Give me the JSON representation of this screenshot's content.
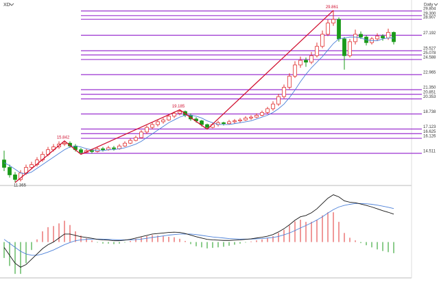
{
  "chart_data": {
    "type": "candlestick",
    "symbol": "XD",
    "period": "Daily",
    "up_color": "#e03030",
    "down_color": "#1a9a1a",
    "ma_color": "#4a7fd8",
    "fib_color": "#9b30d0",
    "trend_color": "#d01030",
    "ylim": [
      11.13,
      30.39
    ],
    "candles": [
      [
        13.8,
        14.8,
        12.6,
        13.0
      ],
      [
        13.0,
        13.3,
        11.9,
        12.2
      ],
      [
        12.2,
        12.5,
        11.365,
        11.7
      ],
      [
        11.7,
        12.7,
        11.5,
        12.4
      ],
      [
        12.4,
        13.3,
        12.2,
        13.0
      ],
      [
        13.0,
        13.6,
        12.8,
        13.3
      ],
      [
        13.3,
        14.1,
        13.1,
        13.8
      ],
      [
        13.8,
        14.7,
        13.6,
        14.4
      ],
      [
        14.4,
        15.2,
        14.2,
        14.9
      ],
      [
        14.9,
        15.5,
        14.7,
        15.2
      ],
      [
        15.2,
        15.8,
        15.0,
        15.5
      ],
      [
        15.5,
        15.842,
        15.3,
        15.6
      ],
      [
        15.6,
        15.8,
        15.1,
        15.3
      ],
      [
        15.3,
        15.5,
        14.7,
        14.9
      ],
      [
        14.9,
        15.1,
        14.4,
        14.6
      ],
      [
        14.6,
        15.0,
        14.5,
        14.8
      ],
      [
        14.8,
        15.0,
        14.5,
        14.7
      ],
      [
        14.7,
        15.2,
        14.6,
        15.0
      ],
      [
        15.0,
        15.2,
        14.7,
        14.9
      ],
      [
        14.9,
        15.3,
        14.8,
        15.1
      ],
      [
        15.1,
        15.3,
        14.8,
        15.0
      ],
      [
        15.0,
        15.5,
        14.9,
        15.3
      ],
      [
        15.3,
        15.8,
        15.2,
        15.6
      ],
      [
        15.6,
        16.1,
        15.5,
        15.9
      ],
      [
        15.9,
        16.4,
        15.8,
        16.2
      ],
      [
        16.2,
        17.0,
        16.1,
        16.8
      ],
      [
        16.8,
        17.5,
        16.6,
        17.3
      ],
      [
        17.3,
        17.8,
        17.1,
        17.6
      ],
      [
        17.6,
        18.1,
        17.4,
        17.9
      ],
      [
        17.9,
        18.3,
        17.7,
        18.1
      ],
      [
        18.1,
        18.7,
        18.0,
        18.5
      ],
      [
        18.5,
        19.0,
        18.3,
        18.8
      ],
      [
        18.8,
        19.185,
        18.6,
        19.0
      ],
      [
        19.0,
        19.1,
        18.4,
        18.6
      ],
      [
        18.6,
        18.8,
        18.0,
        18.2
      ],
      [
        18.2,
        18.4,
        17.8,
        18.0
      ],
      [
        18.0,
        18.1,
        17.4,
        17.6
      ],
      [
        17.6,
        17.7,
        17.1,
        17.3
      ],
      [
        17.3,
        17.8,
        17.2,
        17.6
      ],
      [
        17.6,
        18.0,
        17.4,
        17.8
      ],
      [
        17.8,
        17.9,
        17.5,
        17.7
      ],
      [
        17.7,
        18.1,
        17.6,
        17.9
      ],
      [
        17.9,
        18.2,
        17.7,
        18.0
      ],
      [
        18.0,
        18.3,
        17.8,
        18.1
      ],
      [
        18.1,
        18.5,
        18.0,
        18.3
      ],
      [
        18.3,
        18.6,
        18.1,
        18.4
      ],
      [
        18.4,
        18.8,
        18.3,
        18.6
      ],
      [
        18.6,
        19.1,
        18.5,
        18.9
      ],
      [
        18.9,
        19.5,
        18.7,
        19.3
      ],
      [
        19.3,
        20.1,
        19.1,
        19.8
      ],
      [
        19.8,
        20.9,
        19.6,
        20.6
      ],
      [
        20.6,
        21.9,
        20.4,
        21.6
      ],
      [
        21.6,
        23.1,
        21.4,
        22.8
      ],
      [
        22.8,
        24.4,
        22.6,
        24.0
      ],
      [
        24.0,
        24.9,
        23.7,
        24.5
      ],
      [
        24.5,
        24.8,
        23.8,
        24.3
      ],
      [
        24.3,
        25.4,
        24.1,
        25.0
      ],
      [
        25.0,
        26.4,
        24.8,
        26.0
      ],
      [
        26.0,
        27.7,
        25.8,
        27.3
      ],
      [
        27.3,
        28.9,
        27.1,
        28.5
      ],
      [
        28.5,
        29.861,
        28.2,
        28.9
      ],
      [
        28.9,
        29.1,
        26.5,
        26.8
      ],
      [
        26.8,
        27.0,
        23.5,
        25.0
      ],
      [
        25.0,
        26.8,
        24.8,
        26.5
      ],
      [
        26.5,
        27.8,
        26.2,
        27.3
      ],
      [
        27.3,
        27.6,
        26.8,
        27.0
      ],
      [
        27.0,
        27.2,
        26.1,
        26.4
      ],
      [
        26.4,
        27.0,
        26.2,
        26.8
      ],
      [
        26.8,
        27.4,
        26.6,
        27.1
      ],
      [
        27.1,
        27.3,
        26.6,
        26.9
      ],
      [
        26.9,
        27.9,
        26.7,
        27.5
      ],
      [
        27.5,
        27.6,
        26.2,
        26.5
      ]
    ],
    "ma": [
      13.5,
      13.2,
      12.8,
      12.4,
      12.3,
      12.5,
      12.9,
      13.3,
      13.7,
      14.1,
      14.5,
      14.9,
      15.2,
      15.3,
      15.2,
      15.0,
      14.9,
      14.8,
      14.8,
      14.9,
      14.9,
      15.0,
      15.1,
      15.3,
      15.5,
      15.8,
      16.2,
      16.6,
      17.0,
      17.4,
      17.8,
      18.1,
      18.4,
      18.6,
      18.6,
      18.5,
      18.3,
      18.0,
      17.8,
      17.6,
      17.6,
      17.6,
      17.7,
      17.8,
      17.9,
      18.0,
      18.2,
      18.4,
      18.6,
      18.9,
      19.3,
      19.8,
      20.5,
      21.3,
      22.2,
      23.0,
      23.7,
      24.3,
      24.9,
      25.6,
      26.3,
      26.8,
      26.9,
      27.0,
      27.0,
      26.9,
      26.7,
      26.6,
      26.6,
      26.8,
      26.9,
      26.9
    ],
    "fib_start_index": 14,
    "fib_levels": [
      29.804,
      {
        "value": 29.3,
        "label": "29.300"
      },
      28.907,
      27.192,
      25.527,
      25.078,
      24.588,
      22.965,
      {
        "value": 21.35,
        "label": "21.350"
      },
      20.851,
      20.353,
      18.738,
      17.123,
      16.625,
      16.126,
      14.511
    ],
    "trend_points": [
      {
        "index": 2,
        "at": "low",
        "labeled": true
      },
      {
        "index": 11,
        "at": "high",
        "labeled": true
      },
      {
        "index": 14,
        "at": "low",
        "labeled": false
      },
      {
        "index": 32,
        "at": "high",
        "labeled": true
      },
      {
        "index": 37,
        "at": "low",
        "labeled": false
      },
      {
        "index": 60,
        "at": "high",
        "labeled": true
      }
    ],
    "macd": {
      "ylim": [
        -1.3,
        2.0
      ],
      "dif_color": "#111111",
      "dea_color": "#4a7fd8",
      "dif": [
        -0.2,
        -0.5,
        -0.8,
        -0.95,
        -0.85,
        -0.65,
        -0.45,
        -0.25,
        -0.1,
        0.0,
        0.15,
        0.3,
        0.3,
        0.25,
        0.2,
        0.17,
        0.14,
        0.1,
        0.08,
        0.07,
        0.05,
        0.05,
        0.07,
        0.1,
        0.15,
        0.2,
        0.25,
        0.3,
        0.32,
        0.34,
        0.36,
        0.37,
        0.36,
        0.32,
        0.26,
        0.2,
        0.15,
        0.1,
        0.08,
        0.07,
        0.06,
        0.06,
        0.07,
        0.08,
        0.1,
        0.12,
        0.15,
        0.18,
        0.22,
        0.28,
        0.38,
        0.5,
        0.65,
        0.82,
        0.95,
        1.0,
        1.1,
        1.25,
        1.45,
        1.65,
        1.78,
        1.7,
        1.55,
        1.5,
        1.48,
        1.43,
        1.38,
        1.32,
        1.25,
        1.18,
        1.12,
        1.05
      ],
      "dea": [
        0.1,
        -0.05,
        -0.2,
        -0.35,
        -0.45,
        -0.5,
        -0.5,
        -0.45,
        -0.38,
        -0.3,
        -0.2,
        -0.1,
        -0.02,
        0.05,
        0.08,
        0.1,
        0.11,
        0.11,
        0.11,
        0.1,
        0.09,
        0.08,
        0.08,
        0.08,
        0.09,
        0.11,
        0.14,
        0.17,
        0.2,
        0.23,
        0.26,
        0.28,
        0.3,
        0.3,
        0.3,
        0.28,
        0.25,
        0.22,
        0.19,
        0.17,
        0.15,
        0.13,
        0.12,
        0.11,
        0.11,
        0.11,
        0.12,
        0.13,
        0.15,
        0.17,
        0.21,
        0.27,
        0.34,
        0.43,
        0.53,
        0.62,
        0.72,
        0.83,
        0.95,
        1.09,
        1.22,
        1.32,
        1.38,
        1.42,
        1.45,
        1.45,
        1.44,
        1.42,
        1.39,
        1.35,
        1.31,
        1.26
      ],
      "hist": [
        -0.6,
        -0.9,
        -1.2,
        -1.2,
        -0.8,
        -0.3,
        0.1,
        0.4,
        0.56,
        0.6,
        0.7,
        0.8,
        0.64,
        0.4,
        0.24,
        0.14,
        0.06,
        -0.02,
        -0.06,
        -0.06,
        -0.08,
        -0.06,
        -0.02,
        0.04,
        0.12,
        0.18,
        0.22,
        0.26,
        0.24,
        0.22,
        0.2,
        0.18,
        0.12,
        0.04,
        -0.08,
        -0.16,
        -0.2,
        -0.24,
        -0.22,
        -0.2,
        -0.18,
        -0.14,
        -0.1,
        -0.06,
        -0.02,
        0.02,
        0.06,
        0.1,
        0.14,
        0.22,
        0.34,
        0.46,
        0.62,
        0.78,
        0.84,
        0.76,
        0.76,
        0.84,
        1.0,
        1.12,
        1.12,
        0.76,
        0.34,
        0.16,
        0.06,
        -0.04,
        -0.12,
        -0.2,
        -0.28,
        -0.34,
        -0.38,
        -0.42
      ]
    }
  }
}
